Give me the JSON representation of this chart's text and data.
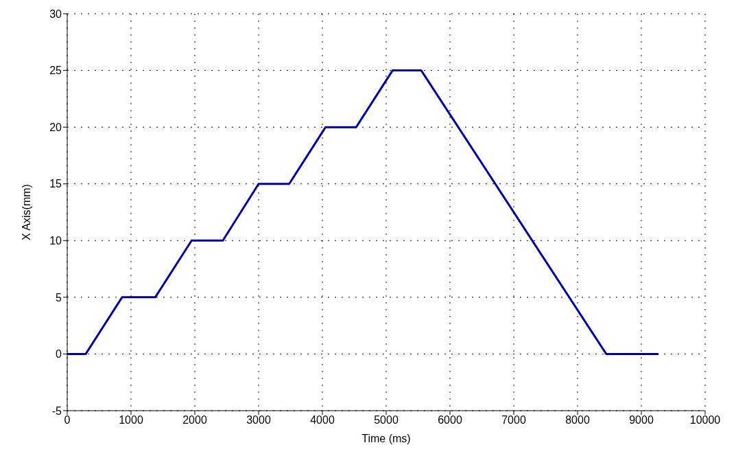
{
  "chart_data": {
    "type": "line",
    "xlabel": "Time (ms)",
    "ylabel": "X Axis(mm)",
    "xlim": [
      0,
      10000
    ],
    "xticks": [
      0,
      1000,
      2000,
      3000,
      4000,
      5000,
      6000,
      7000,
      8000,
      9000,
      10000
    ],
    "ylim": [
      -5,
      30
    ],
    "yticks": [
      -5,
      0,
      5,
      10,
      15,
      20,
      25,
      30
    ],
    "grid": true,
    "marker": "none",
    "line_style": "solid",
    "series": [
      {
        "color": "#0000a0",
        "x": [
          0,
          290,
          860,
          1380,
          1950,
          2440,
          3000,
          3480,
          4050,
          4530,
          5100,
          5550,
          8450,
          9270
        ],
        "values": [
          0,
          0,
          5,
          5,
          10,
          10,
          15,
          15,
          20,
          20,
          25,
          25,
          0,
          0
        ]
      }
    ]
  }
}
